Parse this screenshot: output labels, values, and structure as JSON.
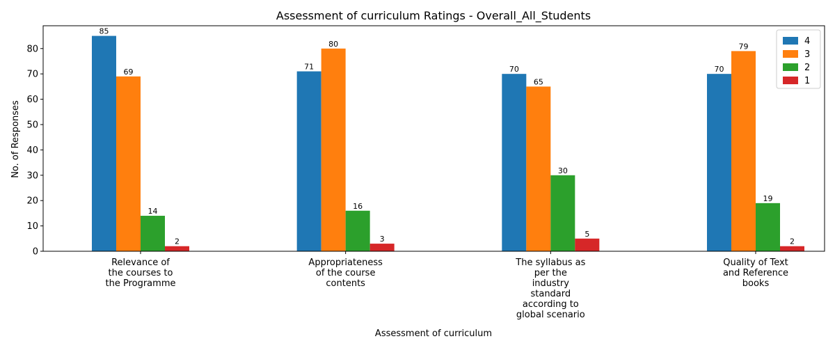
{
  "chart_data": {
    "type": "bar",
    "title": "Assessment of curriculum Ratings - Overall_All_Students",
    "xlabel": "Assessment of curriculum",
    "ylabel": "No. of Responses",
    "ylim": [
      0,
      89
    ],
    "yticks": [
      0,
      10,
      20,
      30,
      40,
      50,
      60,
      70,
      80
    ],
    "grid": false,
    "legend_position": "top-right",
    "categories": [
      [
        "Relevance of",
        "the courses to",
        "the Programme"
      ],
      [
        "Appropriateness",
        "of the course",
        "contents"
      ],
      [
        "The syllabus as",
        "per the",
        "industry",
        "standard",
        "according to",
        "global scenario"
      ],
      [
        "Quality of Text",
        "and Reference",
        "books"
      ]
    ],
    "series": [
      {
        "name": "4",
        "color": "#1f77b4",
        "values": [
          85,
          71,
          70,
          70
        ]
      },
      {
        "name": "3",
        "color": "#ff7f0e",
        "values": [
          69,
          80,
          65,
          79
        ]
      },
      {
        "name": "2",
        "color": "#2ca02c",
        "values": [
          14,
          16,
          30,
          19
        ]
      },
      {
        "name": "1",
        "color": "#d62728",
        "values": [
          2,
          3,
          5,
          2
        ]
      }
    ]
  }
}
